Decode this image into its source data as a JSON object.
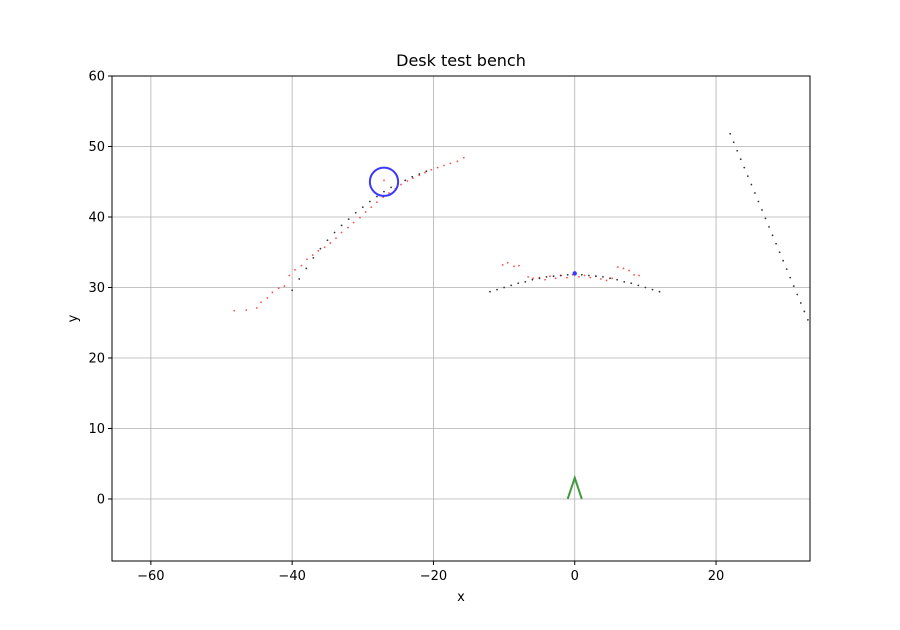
{
  "chart_data": {
    "type": "scatter",
    "title": "Desk test bench",
    "xlabel": "x",
    "ylabel": "y",
    "xlim": [
      -65.5,
      33.3
    ],
    "ylim": [
      -8.8,
      60
    ],
    "x_ticks": [
      -60,
      -40,
      -20,
      0,
      20
    ],
    "y_ticks": [
      0,
      10,
      20,
      30,
      40,
      50,
      60
    ],
    "grid": true,
    "colors": {
      "red_points": "#ff4d4d",
      "dark_points": "#333333",
      "circle": "#3a3aff",
      "arrow": "#3c9a3c",
      "grid": "#b0b0b0"
    },
    "series": [
      {
        "style": "red-dots",
        "points": [
          [
            -48.2,
            26.7
          ],
          [
            -46.5,
            26.8
          ],
          [
            -45.0,
            27.1
          ],
          [
            -44.4,
            27.9
          ],
          [
            -43.5,
            28.5
          ],
          [
            -42.8,
            29.3
          ],
          [
            -41.9,
            29.9
          ],
          [
            -41.1,
            30.2
          ],
          [
            -40.4,
            31.7
          ],
          [
            -39.6,
            32.5
          ],
          [
            -38.7,
            33.1
          ],
          [
            -37.9,
            34.0
          ],
          [
            -37.1,
            34.6
          ],
          [
            -36.3,
            35.2
          ],
          [
            -35.4,
            35.7
          ],
          [
            -34.6,
            36.3
          ],
          [
            -33.8,
            37.0
          ],
          [
            -33.0,
            37.8
          ],
          [
            -32.1,
            38.5
          ],
          [
            -31.3,
            39.2
          ],
          [
            -30.4,
            39.9
          ],
          [
            -29.6,
            40.7
          ],
          [
            -28.8,
            41.4
          ],
          [
            -28.0,
            42.1
          ],
          [
            -27.1,
            42.8
          ],
          [
            -26.3,
            43.4
          ],
          [
            -25.4,
            44.0
          ],
          [
            -24.6,
            44.6
          ],
          [
            -23.7,
            45.1
          ],
          [
            -22.9,
            45.5
          ],
          [
            -22.0,
            45.9
          ],
          [
            -21.2,
            46.3
          ],
          [
            -20.3,
            46.7
          ],
          [
            -19.4,
            47.0
          ],
          [
            -18.5,
            47.3
          ],
          [
            -17.6,
            47.6
          ],
          [
            -16.6,
            47.9
          ],
          [
            -15.7,
            48.4
          ],
          [
            -27.0,
            45.2
          ],
          [
            -10.2,
            33.2
          ],
          [
            -9.5,
            33.5
          ],
          [
            -8.6,
            33.0
          ],
          [
            -7.9,
            33.1
          ],
          [
            -6.6,
            31.5
          ],
          [
            -5.9,
            31.3
          ],
          [
            -5.0,
            31.4
          ],
          [
            -4.2,
            31.1
          ],
          [
            -3.5,
            31.6
          ],
          [
            -2.7,
            31.3
          ],
          [
            -1.9,
            31.7
          ],
          [
            -1.1,
            31.4
          ],
          [
            -0.3,
            31.8
          ],
          [
            0.6,
            31.5
          ],
          [
            1.4,
            31.7
          ],
          [
            2.2,
            31.4
          ],
          [
            3.0,
            31.6
          ],
          [
            3.7,
            31.2
          ],
          [
            4.5,
            31.0
          ],
          [
            5.3,
            31.3
          ],
          [
            6.1,
            32.9
          ],
          [
            6.9,
            32.7
          ],
          [
            7.7,
            32.4
          ],
          [
            8.4,
            31.8
          ],
          [
            9.1,
            31.7
          ]
        ]
      },
      {
        "style": "dark-dots",
        "points": [
          [
            -40.0,
            29.6
          ],
          [
            -39.0,
            31.2
          ],
          [
            -38.0,
            32.7
          ],
          [
            -37.0,
            34.2
          ],
          [
            -36.0,
            35.5
          ],
          [
            -35.0,
            36.7
          ],
          [
            -34.0,
            37.8
          ],
          [
            -33.0,
            38.8
          ],
          [
            -32.0,
            39.7
          ],
          [
            -31.0,
            40.6
          ],
          [
            -30.0,
            41.4
          ],
          [
            -29.0,
            42.2
          ],
          [
            -28.0,
            42.9
          ],
          [
            -27.0,
            43.6
          ],
          [
            -26.0,
            44.2
          ],
          [
            -25.0,
            44.7
          ],
          [
            -24.0,
            45.2
          ],
          [
            -23.0,
            45.7
          ],
          [
            -22.0,
            46.1
          ],
          [
            -21.0,
            46.5
          ],
          [
            -12.0,
            29.4
          ],
          [
            -11.0,
            29.7
          ],
          [
            -10.0,
            30.0
          ],
          [
            -9.0,
            30.3
          ],
          [
            -8.0,
            30.6
          ],
          [
            -7.0,
            30.8
          ],
          [
            -6.0,
            31.1
          ],
          [
            -5.0,
            31.3
          ],
          [
            -4.0,
            31.5
          ],
          [
            -3.0,
            31.6
          ],
          [
            -2.0,
            31.7
          ],
          [
            -1.0,
            31.8
          ],
          [
            0.0,
            31.8
          ],
          [
            1.0,
            31.8
          ],
          [
            2.0,
            31.7
          ],
          [
            3.0,
            31.6
          ],
          [
            4.0,
            31.5
          ],
          [
            5.0,
            31.3
          ],
          [
            6.0,
            31.1
          ],
          [
            7.0,
            30.8
          ],
          [
            8.0,
            30.6
          ],
          [
            9.0,
            30.3
          ],
          [
            10.0,
            30.0
          ],
          [
            11.0,
            29.7
          ],
          [
            12.0,
            29.4
          ],
          [
            22.0,
            51.8
          ],
          [
            22.5,
            50.6
          ],
          [
            23.0,
            49.4
          ],
          [
            23.5,
            48.2
          ],
          [
            24.0,
            47.0
          ],
          [
            24.5,
            45.8
          ],
          [
            25.0,
            44.6
          ],
          [
            25.5,
            43.4
          ],
          [
            26.0,
            42.2
          ],
          [
            26.5,
            41.0
          ],
          [
            27.0,
            39.8
          ],
          [
            27.5,
            38.6
          ],
          [
            28.0,
            37.4
          ],
          [
            28.5,
            36.2
          ],
          [
            29.0,
            35.0
          ],
          [
            29.5,
            33.8
          ],
          [
            30.0,
            32.6
          ],
          [
            30.5,
            31.4
          ],
          [
            31.0,
            30.2
          ],
          [
            31.5,
            29.0
          ],
          [
            32.0,
            27.8
          ],
          [
            32.5,
            26.6
          ],
          [
            33.0,
            25.4
          ]
        ]
      }
    ],
    "circle": {
      "center": [
        -27.0,
        45.0
      ],
      "radius": 2.0
    },
    "target": {
      "position": [
        0.0,
        32.0
      ]
    },
    "arrow": {
      "tip": [
        0.0,
        3.0
      ],
      "left_base": [
        -1.0,
        0.0
      ],
      "right_base": [
        1.0,
        0.0
      ]
    }
  }
}
